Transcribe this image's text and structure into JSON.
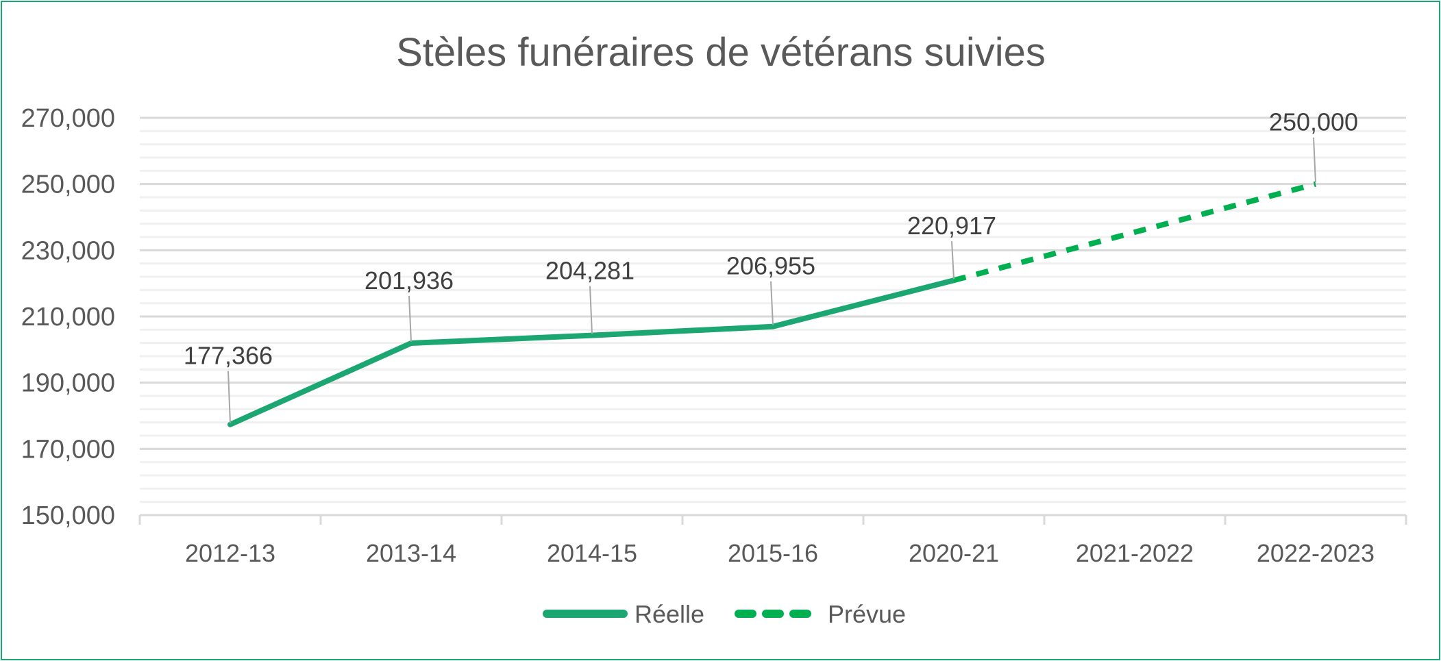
{
  "chart_data": {
    "type": "line",
    "title": "Stèles funéraires de vétérans suivies",
    "xlabel": "",
    "ylabel": "",
    "categories": [
      "2012-13",
      "2013-14",
      "2014-15",
      "2015-16",
      "2020-21",
      "2021-2022",
      "2022-2023"
    ],
    "ylim": [
      150000,
      270000
    ],
    "yticks": [
      150000,
      170000,
      190000,
      210000,
      230000,
      250000,
      270000
    ],
    "ytick_labels": [
      "150,000",
      "170,000",
      "190,000",
      "210,000",
      "230,000",
      "250,000",
      "270,000"
    ],
    "minor_grid_step": 4000,
    "grid": true,
    "legend_position": "bottom",
    "series": [
      {
        "name": "Réelle",
        "style": "solid",
        "color": "#1ba672",
        "values": [
          177366,
          201936,
          204281,
          206955,
          220917,
          null,
          null
        ],
        "labels": [
          "177,366",
          "201,936",
          "204,281",
          "206,955",
          "220,917",
          null,
          null
        ]
      },
      {
        "name": "Prévue",
        "style": "dashed",
        "color": "#00b050",
        "values": [
          null,
          null,
          null,
          null,
          220917,
          null,
          250000
        ],
        "labels": [
          null,
          null,
          null,
          null,
          null,
          null,
          "250,000"
        ]
      }
    ]
  }
}
